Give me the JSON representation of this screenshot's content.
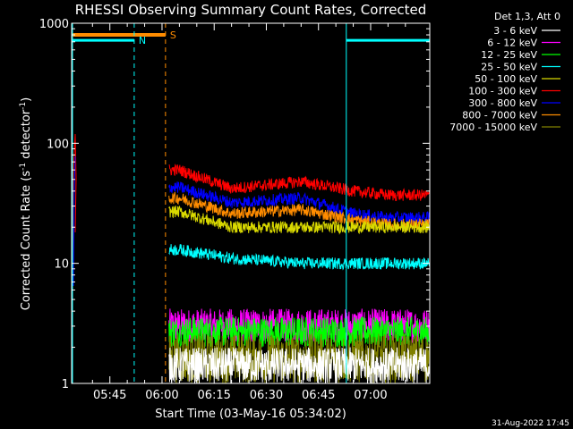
{
  "chart_data": {
    "type": "line",
    "title": "RHESSI Observing Summary Count Rates, Corrected",
    "xlabel": "Start Time (03-May-16 05:34:02)",
    "ylabel_main": "Corrected Count Rate (s",
    "ylabel_exp1": "-1",
    "ylabel_mid": " detector",
    "ylabel_exp2": "-1",
    "ylabel_end": ")",
    "yscale": "log",
    "ylim": [
      1,
      1000
    ],
    "xlim_min": [
      34,
      137
    ],
    "x_ticks": [
      {
        "min": 45,
        "label": "05:45"
      },
      {
        "min": 60,
        "label": "06:00"
      },
      {
        "min": 75,
        "label": "06:15"
      },
      {
        "min": 90,
        "label": "06:30"
      },
      {
        "min": 105,
        "label": "06:45"
      },
      {
        "min": 120,
        "label": "07:00"
      }
    ],
    "y_ticks": [
      {
        "value": 1,
        "label": "1"
      },
      {
        "value": 10,
        "label": "10"
      },
      {
        "value": 100,
        "label": "100"
      },
      {
        "value": 1000,
        "label": "1000"
      }
    ],
    "legend_header": "Det 1,3, Att 0",
    "legend_position": "top-right",
    "series": [
      {
        "name": "3 - 6 keV",
        "color": "#ffffff"
      },
      {
        "name": "6 - 12 keV",
        "color": "#ff00ff"
      },
      {
        "name": "12 - 25 keV",
        "color": "#00ff00"
      },
      {
        "name": "25 - 50 keV",
        "color": "#00ffff"
      },
      {
        "name": "50 - 100 keV",
        "color": "#d9d900"
      },
      {
        "name": "100 - 300 keV",
        "color": "#ff0000"
      },
      {
        "name": "300 - 800 keV",
        "color": "#0000ff"
      },
      {
        "name": "800 - 7000 keV",
        "color": "#ff8c00"
      },
      {
        "name": "7000 - 15000 keV",
        "color": "#808000"
      }
    ],
    "mean_levels": [
      {
        "series": "100 - 300 keV",
        "at_6_05": 60,
        "at_6_20": 42,
        "at_6_40": 48,
        "at_6_55": 40,
        "at_7_05": 37
      },
      {
        "series": "300 - 800 keV",
        "at_6_05": 43,
        "at_6_20": 32,
        "at_6_40": 35,
        "at_6_55": 26,
        "at_7_05": 24
      },
      {
        "series": "800 - 7000 keV",
        "at_6_05": 35,
        "at_6_20": 26,
        "at_6_40": 28,
        "at_6_55": 23,
        "at_7_05": 21
      },
      {
        "series": "50 - 100 keV",
        "at_6_05": 27,
        "at_6_20": 20
      },
      {
        "series": "25 - 50 keV",
        "at_6_05": 13,
        "at_6_20": 11,
        "at_6_40": 10,
        "at_6_55": 10,
        "at_7_05": 10
      }
    ],
    "saa_marker": {
      "label": "S",
      "color": "#ff8c00",
      "at": "06:01",
      "level_value": 800,
      "from": "05:34",
      "to": "06:01"
    },
    "night_marker": {
      "label": "N",
      "color": "#00ffff",
      "at": "05:52",
      "level_value": 720,
      "intervals": [
        [
          "05:34",
          "05:52"
        ],
        [
          "06:53",
          "07:17"
        ]
      ]
    },
    "night_start_line": "06:53",
    "timestamp": "31-Aug-2022 17:45"
  }
}
